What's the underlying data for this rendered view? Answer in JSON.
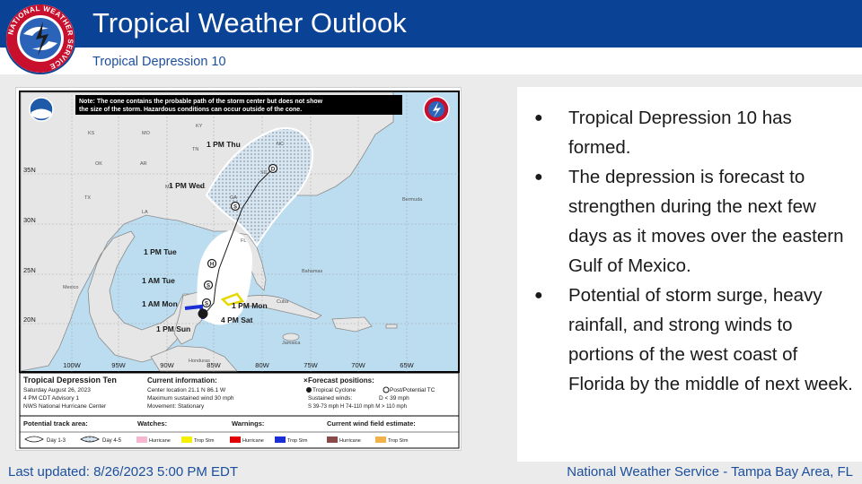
{
  "header": {
    "title": "Tropical Weather Outlook",
    "subtitle": "Tropical Depression 10"
  },
  "logo": {
    "icon": "nws-logo-icon",
    "ring_text": "NATIONAL WEATHER SERVICE"
  },
  "map": {
    "note": [
      "Note: The cone contains the probable path of the storm center but does not show",
      "the size of the storm. Hazardous conditions can occur outside of the cone."
    ],
    "states": [
      "KS",
      "MO",
      "KY",
      "OK",
      "AR",
      "TN",
      "NC",
      "SC",
      "MS",
      "AL",
      "GA",
      "TX",
      "LA",
      "FL"
    ],
    "regions": [
      "Mexico",
      "Bermuda",
      "Bahamas",
      "Cuba",
      "Jamaica",
      "Honduras"
    ],
    "lat_labels": [
      "35N",
      "30N",
      "25N",
      "20N"
    ],
    "lon_labels": [
      "100W",
      "95W",
      "90W",
      "85W",
      "80W",
      "75W",
      "70W",
      "65W"
    ],
    "forecast_points": [
      {
        "label": "1 PM Thu",
        "code": "D"
      },
      {
        "label": "1 PM Wed",
        "code": "S"
      },
      {
        "label": "1 PM Tue",
        "code": "H"
      },
      {
        "label": "1 AM Tue",
        "code": "S"
      },
      {
        "label": "1 AM Mon",
        "code": "S"
      },
      {
        "label": "1 PM Mon",
        "code": ""
      },
      {
        "label": "4 PM Sat",
        "code": ""
      },
      {
        "label": "1 PM Sun",
        "code": ""
      }
    ],
    "info": {
      "storm_name": "Tropical Depression Ten",
      "date": "Saturday August 26, 2023",
      "advisory": "4 PM CDT Advisory 1",
      "center": "NWS National Hurricane Center",
      "current_info_title": "Current information:",
      "center_location": "Center location 21.1 N 86.1 W",
      "max_wind": "Maximum sustained wind 30 mph",
      "movement": "Movement: Stationary",
      "forecast_title": "Forecast positions:",
      "tropical_cyclone": "Tropical Cyclone",
      "post_tc": "Post/Potential TC",
      "sustained_winds": "Sustained winds:",
      "d_def": "D < 39 mph",
      "shm_def": "S 39-73 mph  H 74-110 mph  M > 110 mph",
      "track_area_title": "Potential track area:",
      "day13": "Day 1-3",
      "day45": "Day 4-5",
      "watches_title": "Watches:",
      "warnings_title": "Warnings:",
      "wind_field_title": "Current wind field estimate:",
      "hurricane": "Hurricane",
      "trop_stm": "Trop Stm"
    },
    "colors": {
      "hurricane_watch": "#f7b7d0",
      "ts_watch": "#f4f000",
      "hurricane_warning": "#e00000",
      "ts_warning": "#1a2fd6",
      "hurricane_wind": "#8b4a4a",
      "ts_wind": "#f2b24a"
    }
  },
  "bullets": [
    "Tropical Depression 10 has formed.",
    "The depression is forecast to strengthen during the next few days as it moves over the eastern Gulf of Mexico.",
    "Potential of storm surge, heavy rainfall, and strong winds to portions of the west coast of Florida by the middle of next week."
  ],
  "footer": {
    "updated": "Last updated: 8/26/2023 5:00 PM EDT",
    "office": "National Weather Service - Tampa Bay Area, FL"
  }
}
